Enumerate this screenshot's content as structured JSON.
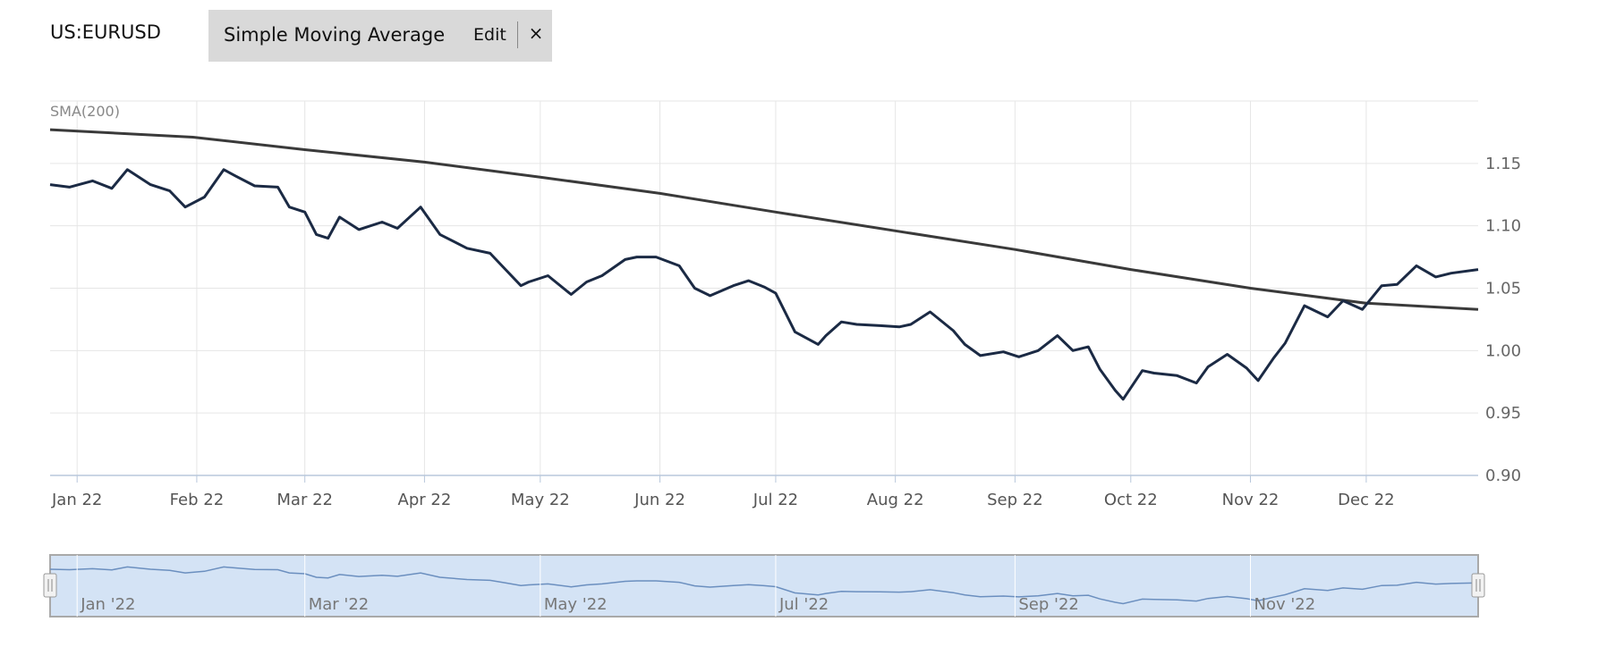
{
  "header": {
    "symbol": "US:EURUSD",
    "indicator_label": "Simple Moving Average",
    "edit_label": "Edit",
    "close_label": "×"
  },
  "chart_data": {
    "type": "line",
    "indicator_tag": "SMA(200)",
    "x_tick_labels": [
      "Jan 22",
      "Feb 22",
      "Mar 22",
      "Apr 22",
      "May 22",
      "Jun 22",
      "Jul 22",
      "Aug 22",
      "Sep 22",
      "Oct 22",
      "Nov 22",
      "Dec 22"
    ],
    "y_tick_labels": [
      "1.15",
      "1.10",
      "1.05",
      "1.00",
      "0.95",
      "0.90"
    ],
    "ylim": [
      0.9,
      1.2
    ],
    "xlim": [
      "2021-12-25",
      "2022-12-30"
    ],
    "grid": true,
    "colors": {
      "price": "#1b2a44",
      "sma": "#3a3a3a",
      "grid": "#e6e6e6",
      "navigator_fill": "#d4e3f5",
      "navigator_line": "#6b8fbf"
    },
    "series": [
      {
        "name": "",
        "x": [
          "2021-12-25",
          "2021-12-30",
          "2022-01-05",
          "2022-01-10",
          "2022-01-14",
          "2022-01-20",
          "2022-01-25",
          "2022-01-29",
          "2022-02-03",
          "2022-02-08",
          "2022-02-11",
          "2022-02-16",
          "2022-02-22",
          "2022-02-25",
          "2022-03-01",
          "2022-03-04",
          "2022-03-07",
          "2022-03-10",
          "2022-03-15",
          "2022-03-21",
          "2022-03-25",
          "2022-03-31",
          "2022-04-05",
          "2022-04-12",
          "2022-04-18",
          "2022-04-22",
          "2022-04-26",
          "2022-04-28",
          "2022-05-03",
          "2022-05-09",
          "2022-05-13",
          "2022-05-17",
          "2022-05-23",
          "2022-05-26",
          "2022-05-31",
          "2022-06-06",
          "2022-06-10",
          "2022-06-14",
          "2022-06-20",
          "2022-06-24",
          "2022-06-28",
          "2022-07-01",
          "2022-07-06",
          "2022-07-12",
          "2022-07-14",
          "2022-07-18",
          "2022-07-22",
          "2022-07-28",
          "2022-08-02",
          "2022-08-05",
          "2022-08-10",
          "2022-08-16",
          "2022-08-19",
          "2022-08-23",
          "2022-08-29",
          "2022-09-02",
          "2022-09-07",
          "2022-09-12",
          "2022-09-16",
          "2022-09-20",
          "2022-09-23",
          "2022-09-27",
          "2022-09-29",
          "2022-10-04",
          "2022-10-07",
          "2022-10-13",
          "2022-10-18",
          "2022-10-21",
          "2022-10-26",
          "2022-10-31",
          "2022-11-03",
          "2022-11-07",
          "2022-11-10",
          "2022-11-15",
          "2022-11-21",
          "2022-11-25",
          "2022-11-30",
          "2022-12-05",
          "2022-12-09",
          "2022-12-14",
          "2022-12-19",
          "2022-12-23",
          "2022-12-30"
        ],
        "values": [
          1.133,
          1.131,
          1.136,
          1.13,
          1.145,
          1.133,
          1.128,
          1.115,
          1.123,
          1.145,
          1.14,
          1.132,
          1.131,
          1.115,
          1.111,
          1.093,
          1.09,
          1.107,
          1.097,
          1.103,
          1.098,
          1.115,
          1.093,
          1.082,
          1.078,
          1.065,
          1.052,
          1.055,
          1.06,
          1.045,
          1.055,
          1.06,
          1.073,
          1.075,
          1.075,
          1.068,
          1.05,
          1.044,
          1.052,
          1.056,
          1.051,
          1.046,
          1.015,
          1.005,
          1.012,
          1.023,
          1.021,
          1.02,
          1.019,
          1.021,
          1.031,
          1.016,
          1.005,
          0.996,
          0.999,
          0.995,
          1.0,
          1.012,
          1.0,
          1.003,
          0.985,
          0.968,
          0.961,
          0.984,
          0.982,
          0.98,
          0.974,
          0.987,
          0.997,
          0.986,
          0.976,
          0.994,
          1.006,
          1.036,
          1.027,
          1.04,
          1.033,
          1.052,
          1.053,
          1.068,
          1.059,
          1.062,
          1.065
        ]
      },
      {
        "name": "SMA(200)",
        "x": [
          "2021-12-25",
          "2022-01-31",
          "2022-03-01",
          "2022-04-01",
          "2022-05-01",
          "2022-06-01",
          "2022-07-01",
          "2022-08-01",
          "2022-09-01",
          "2022-10-01",
          "2022-11-01",
          "2022-12-01",
          "2022-12-30"
        ],
        "values": [
          1.177,
          1.171,
          1.161,
          1.151,
          1.139,
          1.126,
          1.111,
          1.096,
          1.081,
          1.065,
          1.05,
          1.038,
          1.033
        ]
      }
    ]
  },
  "navigator": {
    "tick_labels": [
      "Jan '22",
      "Mar '22",
      "May '22",
      "Jul '22",
      "Sep '22",
      "Nov '22"
    ],
    "left_handle": "left-handle",
    "right_handle": "right-handle"
  }
}
